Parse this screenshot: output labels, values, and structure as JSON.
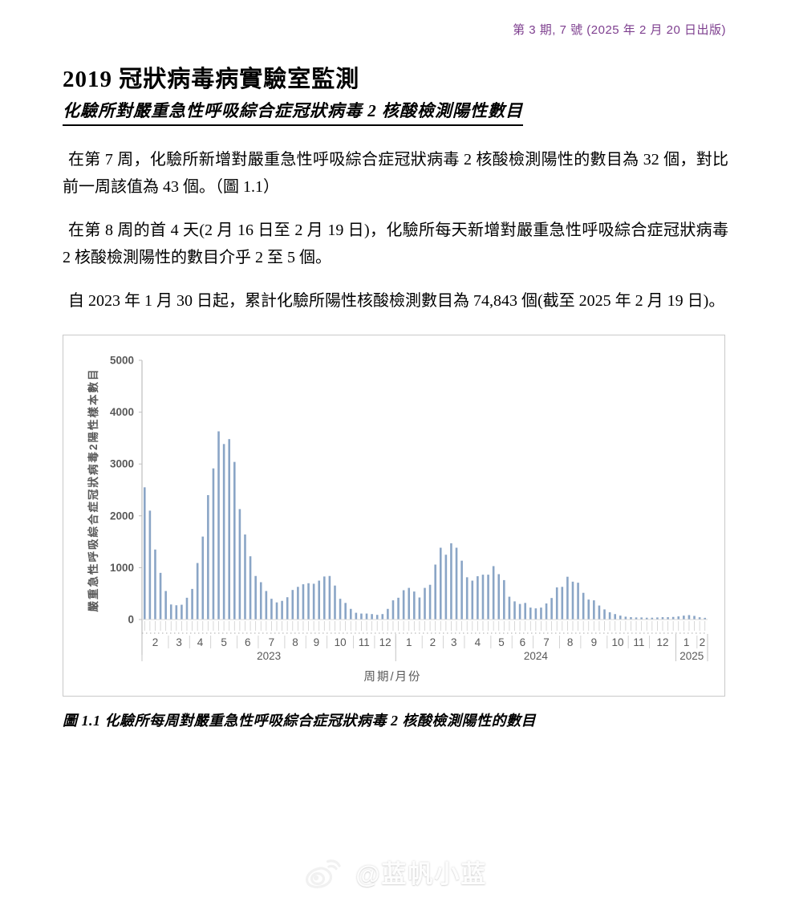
{
  "page": {
    "issue_line": "第 3 期, 7 號 (2025 年 2 月 20 日出版)",
    "issue_color": "#7e3f8f",
    "title": "2019 冠狀病毒病實驗室監測",
    "section_heading": "化驗所對嚴重急性呼吸綜合症冠狀病毒 2 核酸檢測陽性數目",
    "paragraphs": [
      "在第 7 周，化驗所新增對嚴重急性呼吸綜合症冠狀病毒 2 核酸檢測陽性的數目為 32 個，對比前一周該值為 43 個。（圖 1.1）",
      "在第 8 周的首 4 天(2 月 16 日至 2 月 19 日)，化驗所每天新增對嚴重急性呼吸綜合症冠狀病毒 2 核酸檢測陽性的數目介乎 2 至 5 個。",
      "自 2023 年 1 月 30 日起，累計化驗所陽性核酸檢測數目為 74,843 個(截至 2025 年 2 月 19 日)。"
    ],
    "figure_caption": "圖 1.1 化驗所每周對嚴重急性呼吸綜合症冠狀病毒 2 核酸檢測陽性的數目",
    "watermark": "@蓝帆小蓝"
  },
  "chart_data": {
    "type": "bar",
    "title": "",
    "ylabel": "嚴重急性呼吸綜合症冠狀病毒2陽性樣本數目",
    "xlabel": "周期/月份",
    "ylim": [
      0,
      5000
    ],
    "yticks": [
      0,
      1000,
      2000,
      3000,
      4000,
      5000
    ],
    "bar_color": "#8aa5c6",
    "grid": "off",
    "legend": "none",
    "x_unit": "week",
    "years": [
      {
        "label": "2023",
        "months": [
          {
            "m": "2",
            "values": [
              2550,
              2100,
              1350,
              900,
              550
            ]
          },
          {
            "m": "3",
            "values": [
              290,
              275,
              285,
              420
            ]
          },
          {
            "m": "4",
            "values": [
              590,
              1090,
              1600,
              2400
            ]
          },
          {
            "m": "5",
            "values": [
              2915,
              3630,
              3385,
              3480,
              3040
            ]
          },
          {
            "m": "6",
            "values": [
              2130,
              1640,
              1220,
              840
            ]
          },
          {
            "m": "7",
            "values": [
              720,
              550,
              400,
              330,
              360
            ]
          },
          {
            "m": "8",
            "values": [
              430,
              570,
              630,
              680
            ]
          },
          {
            "m": "9",
            "values": [
              700,
              690,
              750,
              830
            ]
          },
          {
            "m": "10",
            "values": [
              840,
              655,
              400,
              320,
              205
            ]
          },
          {
            "m": "11",
            "values": [
              130,
              115,
              115,
              105
            ]
          },
          {
            "m": "12",
            "values": [
              90,
              105,
              205,
              370
            ]
          }
        ]
      },
      {
        "label": "2024",
        "months": [
          {
            "m": "1",
            "values": [
              420,
              565,
              610,
              540,
              425
            ]
          },
          {
            "m": "2",
            "values": [
              610,
              670,
              1060,
              1385
            ]
          },
          {
            "m": "3",
            "values": [
              1250,
              1470,
              1385,
              1135
            ]
          },
          {
            "m": "4",
            "values": [
              815,
              750,
              835,
              865,
              865
            ]
          },
          {
            "m": "5",
            "values": [
              1030,
              875,
              760,
              440
            ]
          },
          {
            "m": "6",
            "values": [
              350,
              300,
              320,
              230
            ]
          },
          {
            "m": "7",
            "values": [
              215,
              230,
              310,
              415,
              620
            ]
          },
          {
            "m": "8",
            "values": [
              630,
              825,
              730,
              710
            ]
          },
          {
            "m": "9",
            "values": [
              515,
              385,
              370,
              270,
              195
            ]
          },
          {
            "m": "10",
            "values": [
              140,
              105,
              75,
              55
            ]
          },
          {
            "m": "11",
            "values": [
              45,
              40,
              40,
              35
            ]
          },
          {
            "m": "12",
            "values": [
              35,
              40,
              45,
              45,
              50
            ]
          }
        ]
      },
      {
        "label": "2025",
        "months": [
          {
            "m": "1",
            "values": [
              60,
              75,
              85,
              70
            ]
          },
          {
            "m": "2",
            "values": [
              43,
              32
            ]
          }
        ]
      }
    ]
  }
}
